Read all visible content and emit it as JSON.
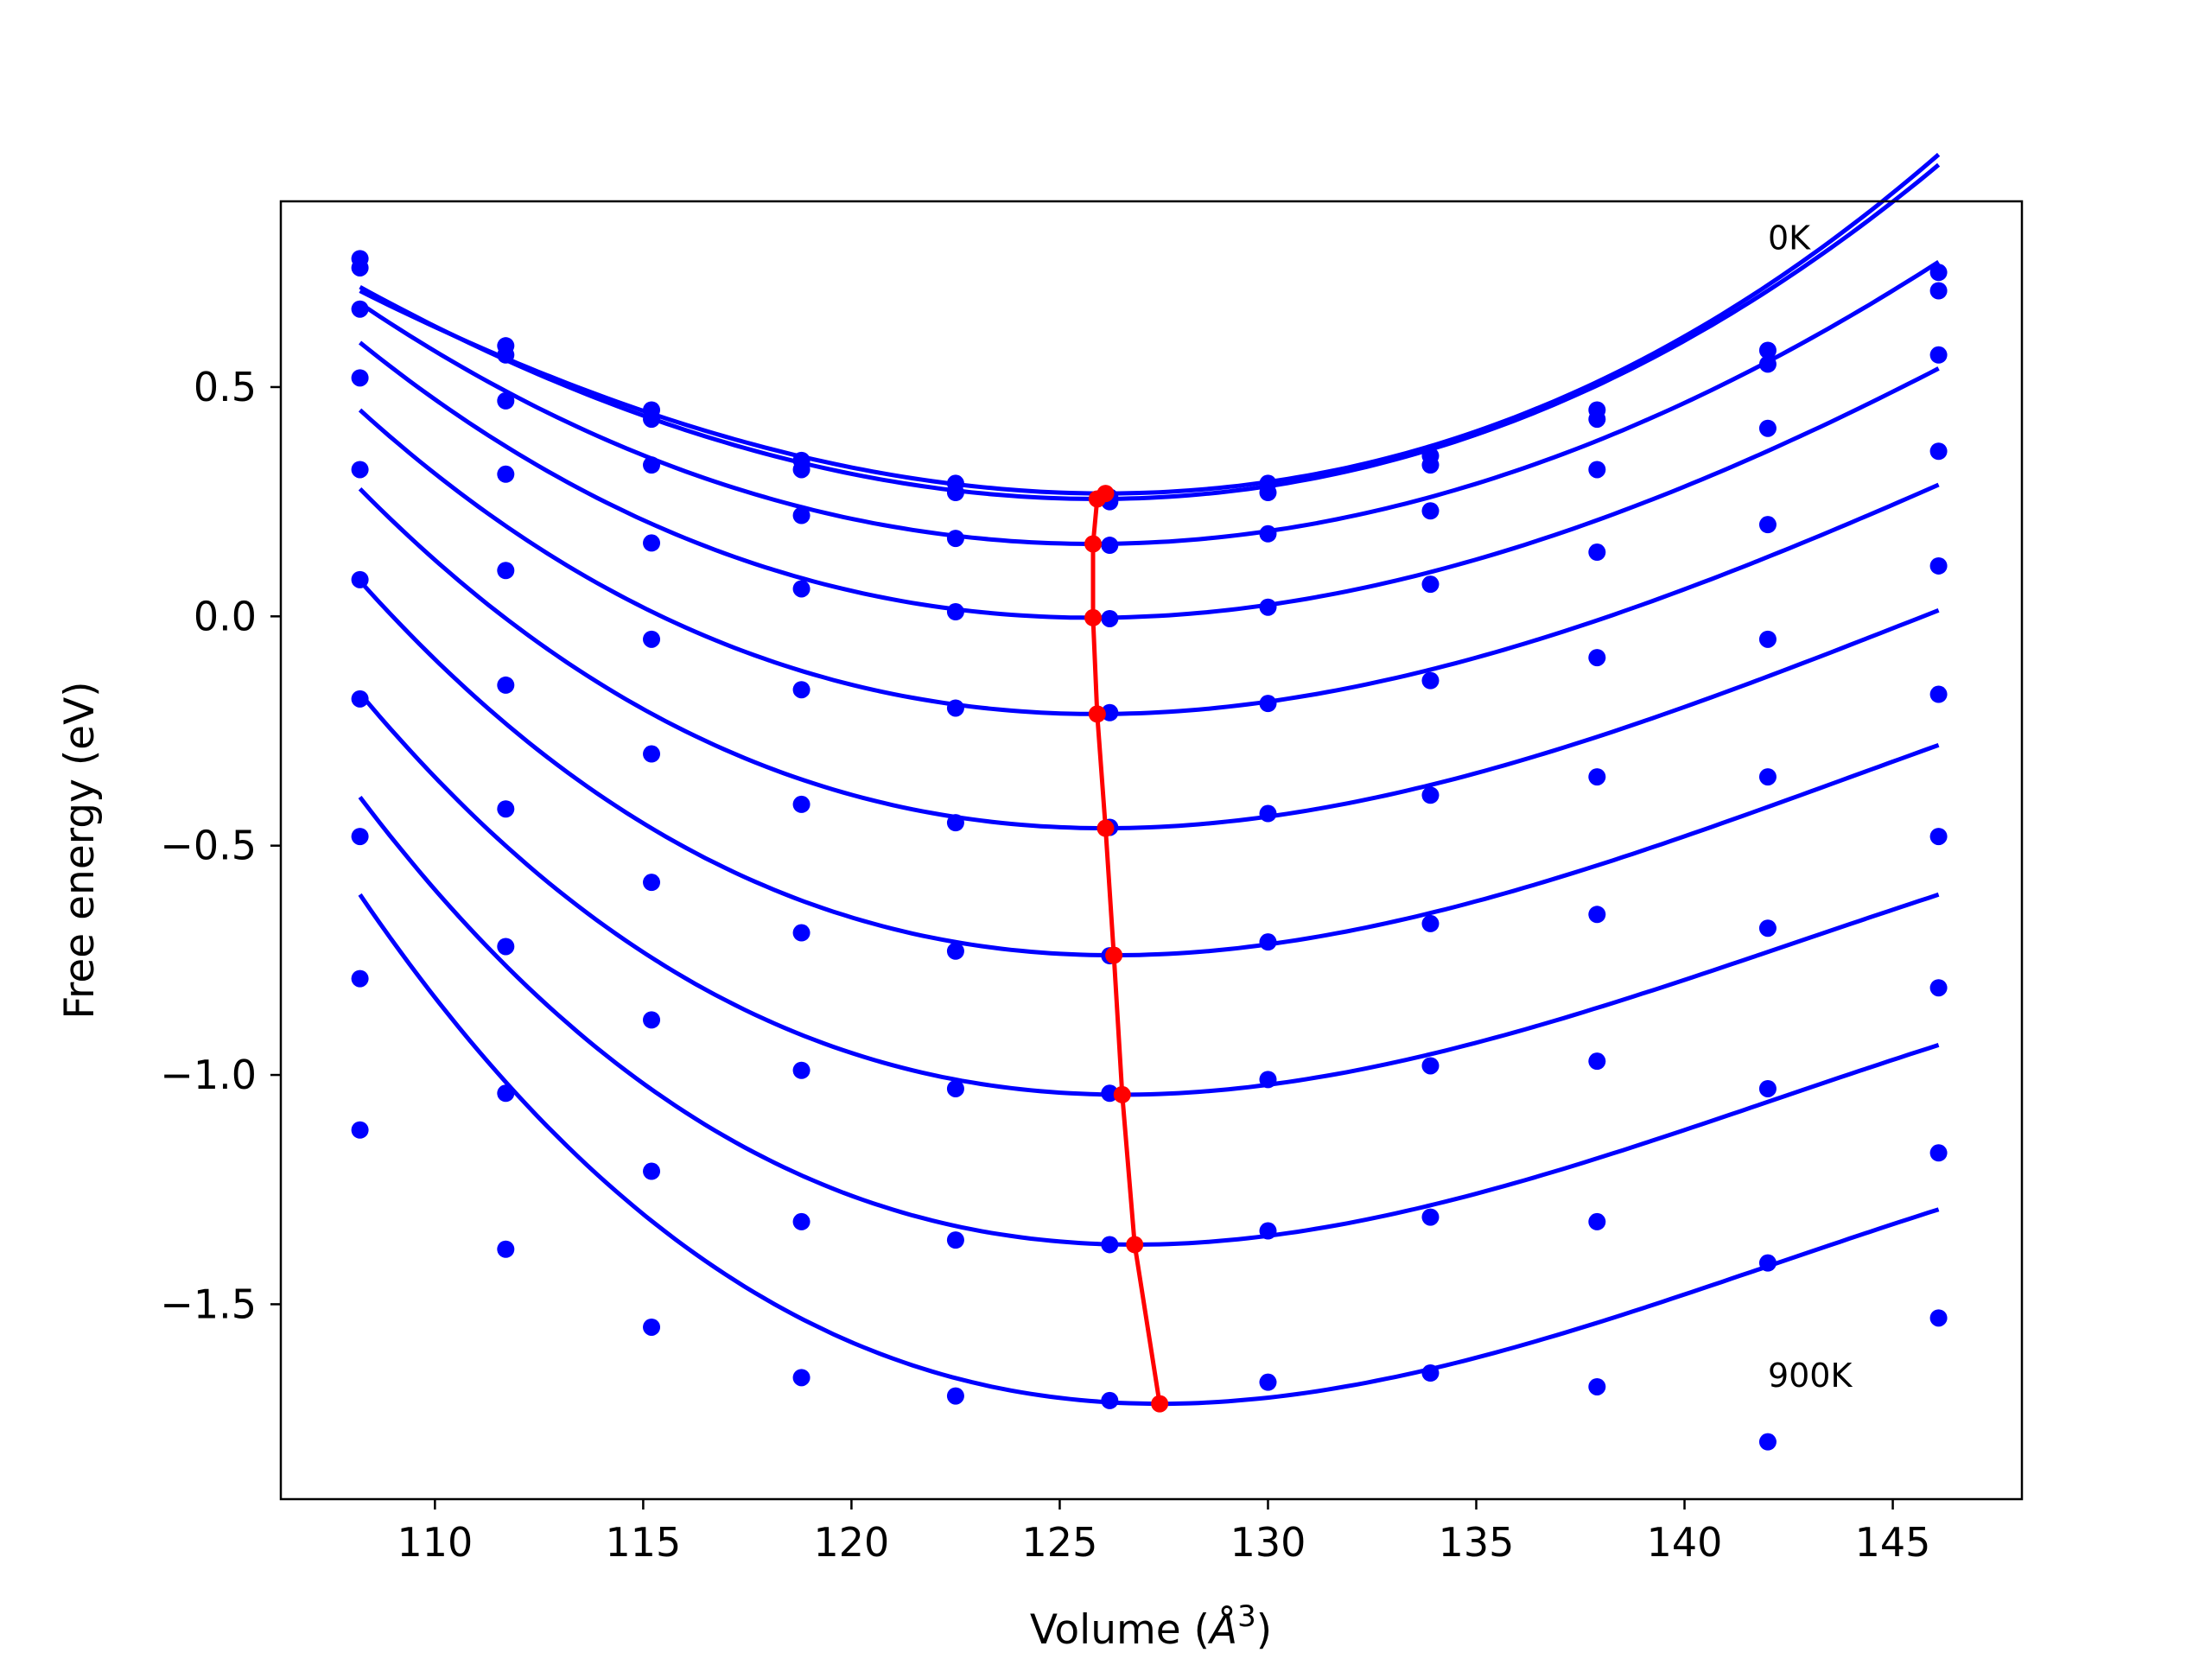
{
  "chart_data": {
    "type": "scatter",
    "xlabel": "Volume ($\\AA^3$)",
    "ylabel": "Free energy (eV)",
    "xlim": [
      106.3,
      148.1
    ],
    "ylim": [
      -1.925,
      0.905
    ],
    "xticks": [
      {
        "value": 110,
        "label": "110"
      },
      {
        "value": 115,
        "label": "115"
      },
      {
        "value": 120,
        "label": "120"
      },
      {
        "value": 125,
        "label": "125"
      },
      {
        "value": 130,
        "label": "130"
      },
      {
        "value": 135,
        "label": "135"
      },
      {
        "value": 140,
        "label": "140"
      },
      {
        "value": 145,
        "label": "145"
      }
    ],
    "yticks": [
      {
        "value": 0.5,
        "label": "0.5"
      },
      {
        "value": 0.0,
        "label": "0.0"
      },
      {
        "value": -0.5,
        "label": "−0.5"
      },
      {
        "value": -1.0,
        "label": "−1.0"
      },
      {
        "value": -1.5,
        "label": "−1.5"
      }
    ],
    "x": [
      108.2,
      111.7,
      115.2,
      118.8,
      122.5,
      126.2,
      130.0,
      133.9,
      137.9,
      142.0,
      146.1
    ],
    "points_color": "#0000ff",
    "fit_color": "#0000ff",
    "min_color": "#ff0000",
    "series": [
      {
        "y": [
          0.78,
          0.59,
          0.45,
          0.34,
          0.29,
          0.26,
          0.29,
          0.35,
          0.45,
          0.58,
          0.75
        ],
        "fit": {
          "v0": 126.1,
          "a": 0.0016,
          "b": 1.24e-05,
          "e0": 0.268
        }
      },
      {
        "y": [
          0.76,
          0.57,
          0.43,
          0.32,
          0.27,
          0.25,
          0.27,
          0.33,
          0.43,
          0.55,
          0.71
        ],
        "fit": {
          "v0": 125.9,
          "a": 0.00162,
          "b": 8.2e-06,
          "e0": 0.256
        }
      },
      {
        "y": [
          0.67,
          0.47,
          0.33,
          0.22,
          0.17,
          0.155,
          0.18,
          0.23,
          0.32,
          0.41,
          0.57
        ],
        "fit": {
          "v0": 125.8,
          "a": 0.0016,
          "b": -5.3e-06,
          "e0": 0.158
        }
      },
      {
        "y": [
          0.52,
          0.31,
          0.16,
          0.06,
          0.01,
          -0.005,
          0.02,
          0.07,
          0.14,
          0.2,
          0.36
        ],
        "fit": {
          "v0": 125.8,
          "a": 0.00165,
          "b": -1.63e-05,
          "e0": -0.003
        }
      },
      {
        "y": [
          0.32,
          0.1,
          -0.05,
          -0.16,
          -0.2,
          -0.21,
          -0.19,
          -0.14,
          -0.09,
          -0.05,
          0.11
        ],
        "fit": {
          "v0": 125.9,
          "a": 0.0017,
          "b": -2.35e-05,
          "e0": -0.213
        }
      },
      {
        "y": [
          0.08,
          -0.15,
          -0.3,
          -0.41,
          -0.45,
          -0.46,
          -0.43,
          -0.39,
          -0.35,
          -0.35,
          -0.17
        ],
        "fit": {
          "v0": 126.1,
          "a": 0.00178,
          "b": -2.96e-05,
          "e0": -0.462
        }
      },
      {
        "y": [
          -0.18,
          -0.42,
          -0.58,
          -0.69,
          -0.73,
          -0.74,
          -0.71,
          -0.67,
          -0.65,
          -0.68,
          -0.48
        ],
        "fit": {
          "v0": 126.3,
          "a": 0.00186,
          "b": -3.49e-05,
          "e0": -0.739
        }
      },
      {
        "y": [
          -0.48,
          -0.72,
          -0.88,
          -0.99,
          -1.03,
          -1.04,
          -1.01,
          -0.98,
          -0.97,
          -1.03,
          -0.81
        ],
        "fit": {
          "v0": 126.5,
          "a": 0.0019,
          "b": -3.9e-05,
          "e0": -1.043
        }
      },
      {
        "y": [
          -0.79,
          -1.04,
          -1.21,
          -1.32,
          -1.36,
          -1.37,
          -1.34,
          -1.31,
          -1.32,
          -1.41,
          -1.17
        ],
        "fit": {
          "v0": 126.8,
          "a": 0.00201,
          "b": -4.36e-05,
          "e0": -1.37
        }
      },
      {
        "y": [
          -1.12,
          -1.38,
          -1.55,
          -1.66,
          -1.7,
          -1.71,
          -1.67,
          -1.65,
          -1.68,
          -1.8,
          -1.53
        ],
        "fit": {
          "v0": 127.4,
          "a": 0.0021,
          "b": -4.75e-05,
          "e0": -1.717
        }
      }
    ],
    "annotations": [
      {
        "text": "0K",
        "x": 142.0,
        "y": 0.8
      },
      {
        "text": "900K",
        "x": 142.0,
        "y": -1.68
      }
    ]
  }
}
